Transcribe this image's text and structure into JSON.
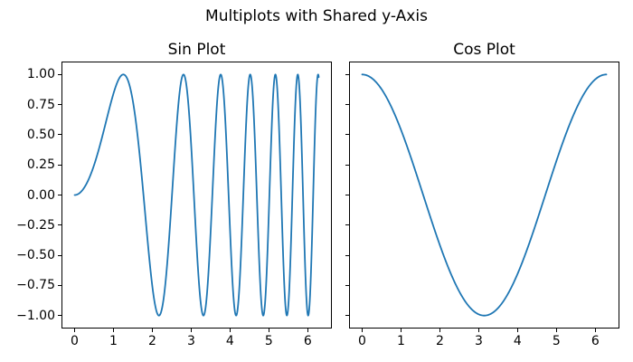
{
  "figure": {
    "suptitle": "Multiplots with Shared y-Axis",
    "background_color": "#ffffff",
    "text_color": "#000000",
    "spine_color": "#000000",
    "line_color": "#1f77b4"
  },
  "chart_data": [
    {
      "type": "line",
      "title": "Sin Plot",
      "xlabel": "",
      "ylabel": "",
      "xlim": [
        -0.3142,
        6.5974
      ],
      "ylim": [
        -1.1,
        1.1
      ],
      "xticks": [
        0,
        1,
        2,
        3,
        4,
        5,
        6
      ],
      "xtick_labels": [
        "0",
        "1",
        "2",
        "3",
        "4",
        "5",
        "6"
      ],
      "yticks": [
        1.0,
        0.75,
        0.5,
        0.25,
        0.0,
        -0.25,
        -0.5,
        -0.75,
        -1.0
      ],
      "ytick_labels": [
        "1.00",
        "0.75",
        "0.50",
        "0.25",
        "0.00",
        "−0.25",
        "−0.50",
        "−0.75",
        "−1.00"
      ],
      "show_ytick_labels": true,
      "shared_y": true,
      "grid": false,
      "legend": null,
      "series": [
        {
          "name": "sin(x^2)",
          "formula": "sin(x^2)",
          "x_start": 0,
          "x_end": 6.2832,
          "n_points": 900,
          "color": "#1f77b4",
          "linewidth": 1.8
        }
      ]
    },
    {
      "type": "line",
      "title": "Cos Plot",
      "xlabel": "",
      "ylabel": "",
      "xlim": [
        -0.3142,
        6.5974
      ],
      "ylim": [
        -1.1,
        1.1
      ],
      "xticks": [
        0,
        1,
        2,
        3,
        4,
        5,
        6
      ],
      "xtick_labels": [
        "0",
        "1",
        "2",
        "3",
        "4",
        "5",
        "6"
      ],
      "yticks": [
        1.0,
        0.75,
        0.5,
        0.25,
        0.0,
        -0.25,
        -0.5,
        -0.75,
        -1.0
      ],
      "ytick_labels": [
        "1.00",
        "0.75",
        "0.50",
        "0.25",
        "0.00",
        "−0.25",
        "−0.50",
        "−0.75",
        "−1.00"
      ],
      "show_ytick_labels": false,
      "shared_y": true,
      "grid": false,
      "legend": null,
      "series": [
        {
          "name": "cos(x)",
          "formula": "cos(x)",
          "x_start": 0,
          "x_end": 6.2832,
          "n_points": 400,
          "color": "#1f77b4",
          "linewidth": 1.8
        }
      ]
    }
  ]
}
